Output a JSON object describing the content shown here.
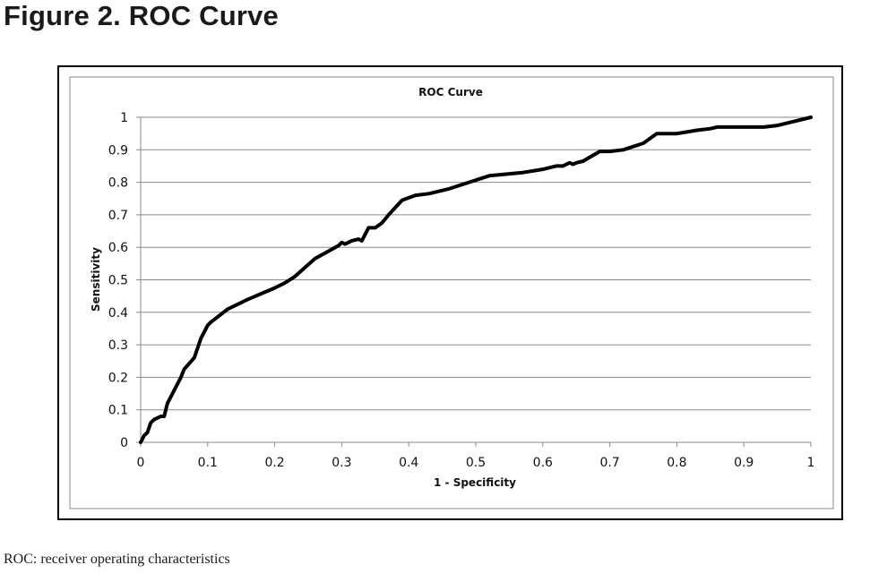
{
  "figure_title": "Figure 2. ROC Curve",
  "caption": "ROC: receiver operating characteristics",
  "chart_data": {
    "type": "line",
    "title": "ROC Curve",
    "xlabel": "1 - Specificity",
    "ylabel": "Sensitivity",
    "xlim": [
      0,
      1
    ],
    "ylim": [
      0,
      1
    ],
    "x_ticks": [
      0,
      0.1,
      0.2,
      0.3,
      0.4,
      0.5,
      0.6,
      0.7,
      0.8,
      0.9,
      1
    ],
    "x_tick_labels": [
      "0",
      "0.1",
      "0.2",
      "0.3",
      "0.4",
      "0.5",
      "0.6",
      "0.7",
      "0.8",
      "0.9",
      "1"
    ],
    "y_ticks": [
      0,
      0.1,
      0.2,
      0.3,
      0.4,
      0.5,
      0.6,
      0.7,
      0.8,
      0.9,
      1
    ],
    "y_tick_labels": [
      "0",
      "0.1",
      "0.2",
      "0.3",
      "0.4",
      "0.5",
      "0.6",
      "0.7",
      "0.8",
      "0.9",
      "1"
    ],
    "grid": "horizontal",
    "legend": "none",
    "line_color": "#000000",
    "series": [
      {
        "x": [
          0,
          0.005,
          0.01,
          0.015,
          0.02,
          0.03,
          0.035,
          0.04,
          0.05,
          0.06,
          0.065,
          0.08,
          0.09,
          0.1,
          0.105,
          0.13,
          0.16,
          0.2,
          0.215,
          0.23,
          0.26,
          0.295,
          0.3,
          0.305,
          0.315,
          0.325,
          0.33,
          0.335,
          0.34,
          0.35,
          0.36,
          0.37,
          0.39,
          0.41,
          0.43,
          0.46,
          0.49,
          0.52,
          0.57,
          0.6,
          0.62,
          0.63,
          0.64,
          0.645,
          0.65,
          0.66,
          0.685,
          0.7,
          0.72,
          0.75,
          0.77,
          0.8,
          0.83,
          0.85,
          0.86,
          0.9,
          0.93,
          0.95,
          0.96,
          1.0
        ],
        "y": [
          0,
          0.02,
          0.03,
          0.06,
          0.07,
          0.08,
          0.08,
          0.12,
          0.16,
          0.2,
          0.225,
          0.26,
          0.32,
          0.36,
          0.37,
          0.41,
          0.44,
          0.475,
          0.49,
          0.51,
          0.565,
          0.605,
          0.615,
          0.61,
          0.62,
          0.625,
          0.62,
          0.64,
          0.66,
          0.66,
          0.675,
          0.7,
          0.745,
          0.76,
          0.765,
          0.78,
          0.8,
          0.82,
          0.83,
          0.84,
          0.85,
          0.85,
          0.86,
          0.855,
          0.86,
          0.865,
          0.895,
          0.895,
          0.9,
          0.92,
          0.95,
          0.95,
          0.96,
          0.965,
          0.97,
          0.97,
          0.97,
          0.975,
          0.98,
          1.0
        ]
      }
    ]
  }
}
